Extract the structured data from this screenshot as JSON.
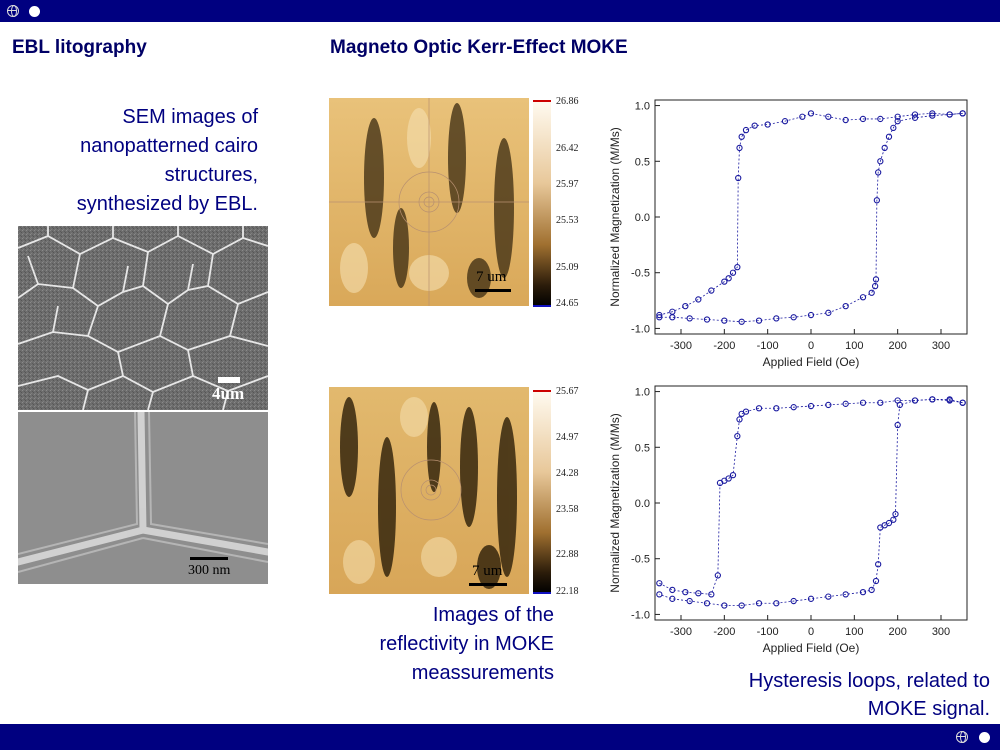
{
  "headings": {
    "left": "EBL litography",
    "right": "Magneto Optic Kerr-Effect MOKE"
  },
  "captions": {
    "sem_lines": [
      "SEM images of",
      "nanopatterned cairo",
      "structures,",
      "synthesized by EBL."
    ],
    "moke_lines": [
      "Images of the",
      "reflectivity in MOKE",
      "meassurements"
    ],
    "loops_lines": [
      "Hysteresis loops, related to",
      "MOKE signal."
    ]
  },
  "sem": {
    "top_scale": "4um",
    "bottom_scale": "300 nm"
  },
  "moke_maps": [
    {
      "scale": "7 um",
      "colorbar_ticks": [
        "26.86",
        "26.42",
        "25.97",
        "25.53",
        "25.09",
        "24.65"
      ]
    },
    {
      "scale": "7 um",
      "colorbar_ticks": [
        "25.67",
        "24.97",
        "24.28",
        "23.58",
        "22.88",
        "22.18"
      ]
    }
  ],
  "colors": {
    "bar": "#000080",
    "caption": "#000080",
    "marker": "#1a1aa0"
  },
  "chart_data": [
    {
      "type": "scatter",
      "xlabel": "Applied Field (Oe)",
      "ylabel": "Normalized Magnetization (M/Ms)",
      "xlim": [
        -360,
        360
      ],
      "ylim": [
        -1.05,
        1.05
      ],
      "xticks": [
        -300,
        -200,
        -100,
        0,
        100,
        200,
        300
      ],
      "yticks": [
        -1.0,
        -0.5,
        0.0,
        0.5,
        1.0
      ],
      "xtick_labels": [
        "-300",
        "-200",
        "-100",
        "0",
        "100",
        "200",
        "300"
      ],
      "ytick_labels": [
        "-1.0",
        "-0.5",
        "0.0",
        "0.5",
        "1.0"
      ],
      "series": [
        {
          "x": [
            -350,
            -320,
            -290,
            -260,
            -230,
            -200,
            -190,
            -180,
            -170,
            -168,
            -165,
            -160,
            -150,
            -130,
            -100,
            -60,
            -20,
            0,
            40,
            80,
            120,
            160,
            200,
            240,
            280,
            320,
            350
          ],
          "y": [
            -0.88,
            -0.85,
            -0.8,
            -0.74,
            -0.66,
            -0.58,
            -0.55,
            -0.5,
            -0.45,
            0.35,
            0.62,
            0.72,
            0.78,
            0.82,
            0.83,
            0.86,
            0.9,
            0.93,
            0.9,
            0.87,
            0.88,
            0.88,
            0.9,
            0.92,
            0.93,
            0.92,
            0.93
          ]
        },
        {
          "x": [
            350,
            320,
            280,
            240,
            200,
            190,
            180,
            170,
            160,
            155,
            152,
            150,
            148,
            140,
            120,
            80,
            40,
            0,
            -40,
            -80,
            -120,
            -160,
            -200,
            -240,
            -280,
            -320,
            -350
          ],
          "y": [
            0.93,
            0.92,
            0.91,
            0.89,
            0.86,
            0.8,
            0.72,
            0.62,
            0.5,
            0.4,
            0.15,
            -0.56,
            -0.62,
            -0.68,
            -0.72,
            -0.8,
            -0.86,
            -0.88,
            -0.9,
            -0.91,
            -0.93,
            -0.94,
            -0.93,
            -0.92,
            -0.91,
            -0.9,
            -0.9
          ]
        }
      ]
    },
    {
      "type": "scatter",
      "xlabel": "Applied Field (Oe)",
      "ylabel": "Normalized Magnetization (M/Ms)",
      "xlim": [
        -360,
        360
      ],
      "ylim": [
        -1.05,
        1.05
      ],
      "xticks": [
        -300,
        -200,
        -100,
        0,
        100,
        200,
        300
      ],
      "yticks": [
        -1.0,
        -0.5,
        0.0,
        0.5,
        1.0
      ],
      "xtick_labels": [
        "-300",
        "-200",
        "-100",
        "0",
        "100",
        "200",
        "300"
      ],
      "ytick_labels": [
        "-1.0",
        "-0.5",
        "0.0",
        "0.5",
        "1.0"
      ],
      "series": [
        {
          "x": [
            -350,
            -320,
            -290,
            -260,
            -230,
            -215,
            -210,
            -200,
            -190,
            -180,
            -170,
            -165,
            -160,
            -150,
            -120,
            -80,
            -40,
            0,
            40,
            80,
            120,
            160,
            200,
            240,
            280,
            320,
            350
          ],
          "y": [
            -0.72,
            -0.78,
            -0.8,
            -0.81,
            -0.82,
            -0.65,
            0.18,
            0.2,
            0.22,
            0.25,
            0.6,
            0.75,
            0.8,
            0.82,
            0.85,
            0.85,
            0.86,
            0.87,
            0.88,
            0.89,
            0.9,
            0.9,
            0.92,
            0.92,
            0.93,
            0.93,
            0.9
          ]
        },
        {
          "x": [
            350,
            320,
            280,
            240,
            205,
            200,
            195,
            190,
            180,
            170,
            160,
            155,
            150,
            140,
            120,
            80,
            40,
            0,
            -40,
            -80,
            -120,
            -160,
            -200,
            -240,
            -280,
            -320,
            -350
          ],
          "y": [
            0.9,
            0.92,
            0.93,
            0.92,
            0.88,
            0.7,
            -0.1,
            -0.15,
            -0.18,
            -0.2,
            -0.22,
            -0.55,
            -0.7,
            -0.78,
            -0.8,
            -0.82,
            -0.84,
            -0.86,
            -0.88,
            -0.9,
            -0.9,
            -0.92,
            -0.92,
            -0.9,
            -0.88,
            -0.86,
            -0.82
          ]
        }
      ]
    }
  ]
}
